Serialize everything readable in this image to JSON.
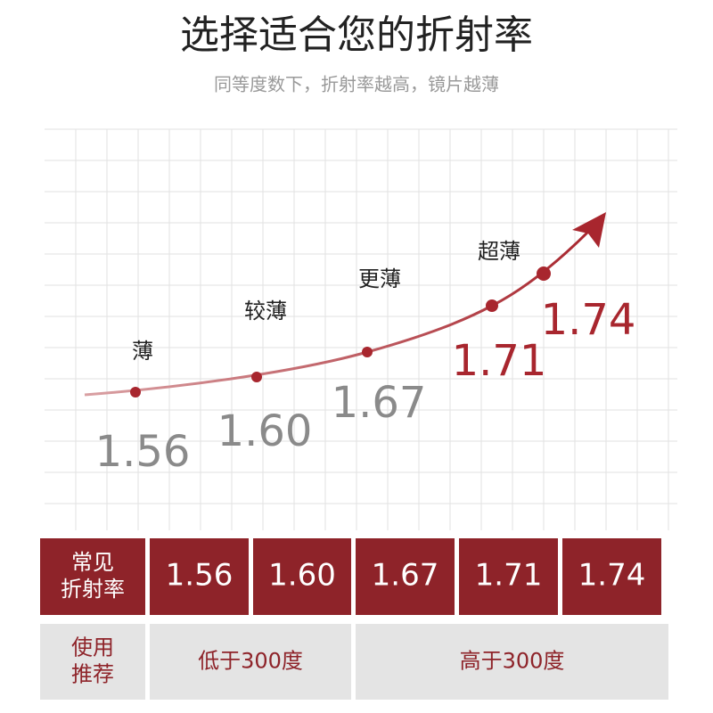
{
  "header": {
    "title": "选择适合您的折射率",
    "subtitle": "同等度数下，折射率越高，镜片越薄"
  },
  "curve": {
    "points": [
      {
        "label": "薄",
        "index": "1.56",
        "color": "#8a8a8a"
      },
      {
        "label": "较薄",
        "index": "1.60",
        "color": "#8a8a8a"
      },
      {
        "label": "更薄",
        "index": "1.67",
        "color": "#8a8a8a"
      },
      {
        "label": "超薄",
        "index": "1.71",
        "color": "#a8262e"
      },
      {
        "label": "",
        "index": "1.74",
        "color": "#a8262e"
      }
    ]
  },
  "table": {
    "rows": [
      {
        "header": [
          "常见",
          "折射率"
        ],
        "cells": [
          "1.56",
          "1.60",
          "1.67",
          "1.71",
          "1.74"
        ]
      },
      {
        "header": [
          "使用",
          "推荐"
        ],
        "cells": [
          "低于300度",
          "高于300度"
        ]
      }
    ]
  }
}
